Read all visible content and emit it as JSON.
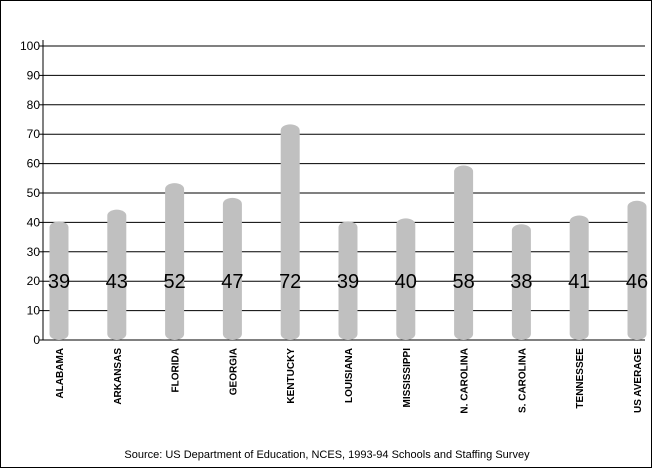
{
  "chart_data": {
    "type": "bar",
    "categories": [
      "ALABAMA",
      "ARKANSAS",
      "FLORIDA",
      "GEORGIA",
      "KENTUCKY",
      "LOUISIANA",
      "MISSISSIPPI",
      "N. CAROLINA",
      "S. CAROLINA",
      "TENNESSEE",
      "US AVERAGE"
    ],
    "values": [
      39,
      43,
      52,
      47,
      72,
      39,
      40,
      58,
      38,
      41,
      46
    ],
    "data_labels": [
      "39",
      "43",
      "52",
      "47",
      "72",
      "39",
      "40",
      "58",
      "38",
      "41",
      "46"
    ],
    "yticks": [
      "0",
      "10",
      "20",
      "30",
      "40",
      "50",
      "60",
      "70",
      "80",
      "90",
      "100"
    ],
    "ylim": [
      0,
      100
    ],
    "grid": true,
    "bar_color": "#c0c0c0",
    "source": "Source: US Department of Education, NCES, 1993-94 Schools and Staffing Survey"
  }
}
